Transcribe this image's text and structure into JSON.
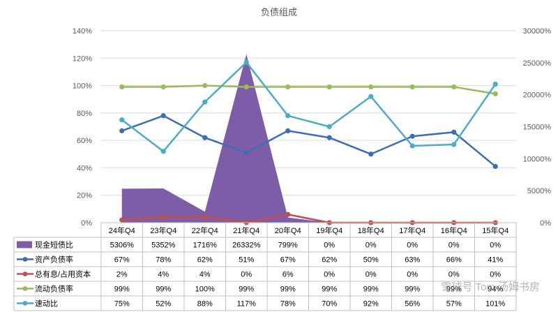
{
  "chart_data": {
    "type": "line",
    "title": "负债组成",
    "categories": [
      "24年Q4",
      "23年Q4",
      "22年Q4",
      "21年Q4",
      "20年Q4",
      "19年Q4",
      "18年Q4",
      "17年Q4",
      "16年Q4",
      "15年Q4"
    ],
    "y_left": {
      "ticks": [
        "0%",
        "20%",
        "40%",
        "60%",
        "80%",
        "100%",
        "120%",
        "140%"
      ],
      "min": 0,
      "max": 140
    },
    "y_right": {
      "ticks": [
        "0%",
        "5000%",
        "10000%",
        "15000%",
        "20000%",
        "25000%",
        "30000%"
      ],
      "min": 0,
      "max": 30000
    },
    "grid": true,
    "legend_placement": "data-table",
    "series": [
      {
        "name": "现金短债比",
        "kind": "area",
        "axis": "right",
        "color": "#7e5da8",
        "values": [
          5306,
          5352,
          1716,
          26332,
          799,
          0,
          0,
          0,
          0,
          0
        ],
        "labels": [
          "5306%",
          "5352%",
          "1716%",
          "26332%",
          "799%",
          "0%",
          "0%",
          "0%",
          "0%",
          "0%"
        ]
      },
      {
        "name": "资产负债率",
        "kind": "line",
        "axis": "left",
        "color": "#3d6db5",
        "values": [
          67,
          78,
          62,
          51,
          67,
          62,
          50,
          63,
          66,
          41
        ],
        "labels": [
          "67%",
          "78%",
          "62%",
          "51%",
          "67%",
          "62%",
          "50%",
          "63%",
          "66%",
          "41%"
        ]
      },
      {
        "name": "总有息/占用资本",
        "kind": "line",
        "axis": "left",
        "color": "#c0504d",
        "values": [
          2,
          4,
          4,
          0,
          6,
          0,
          0,
          0,
          0,
          0
        ],
        "labels": [
          "2%",
          "4%",
          "4%",
          "0%",
          "6%",
          "0%",
          "0%",
          "0%",
          "0%",
          "0%"
        ]
      },
      {
        "name": "流动负债率",
        "kind": "line",
        "axis": "left",
        "color": "#9bbb59",
        "values": [
          99,
          99,
          100,
          99,
          99,
          99,
          99,
          99,
          99,
          94
        ],
        "labels": [
          "99%",
          "99%",
          "100%",
          "99%",
          "99%",
          "99%",
          "99%",
          "99%",
          "99%",
          "94%"
        ]
      },
      {
        "name": "速动比",
        "kind": "line",
        "axis": "left",
        "color": "#4bacc6",
        "values": [
          75,
          52,
          88,
          117,
          78,
          70,
          92,
          56,
          57,
          101
        ],
        "labels": [
          "75%",
          "52%",
          "88%",
          "117%",
          "78%",
          "70%",
          "92%",
          "56%",
          "57%",
          "101%"
        ]
      }
    ]
  },
  "watermark": "雪球号 Tom 汤姆书房"
}
